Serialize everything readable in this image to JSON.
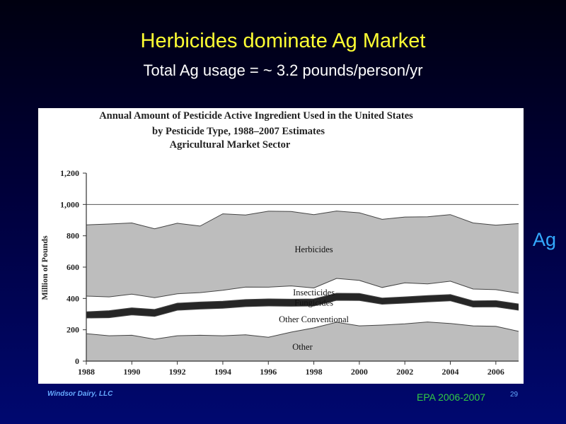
{
  "slide": {
    "title": "Herbicides dominate Ag Market",
    "subtitle": "Total Ag usage = ~ 3.2 pounds/person/yr",
    "side_label": "Ag",
    "footer_left": "Windsor Dairy, LLC",
    "footer_source": "EPA 2006-2007",
    "page_number": "29"
  },
  "chart_data": {
    "type": "area",
    "stacked": true,
    "title_lines": [
      "Annual Amount of  Pesticide Active Ingredient Used in the United States",
      "by Pesticide Type, 1988–2007 Estimates",
      "Agricultural Market Sector"
    ],
    "xlabel": "",
    "ylabel": "Million of Pounds",
    "ylim": [
      0,
      1200
    ],
    "yticks": [
      0,
      200,
      400,
      600,
      800,
      1000,
      1200
    ],
    "ytick_labels": [
      "0",
      "200",
      "400",
      "600",
      "800",
      "1,000",
      "1,200"
    ],
    "xlim": [
      1988,
      2007
    ],
    "xticks": [
      1988,
      1990,
      1992,
      1994,
      1996,
      1998,
      2000,
      2002,
      2004,
      2006
    ],
    "xtick_labels": [
      "1988",
      "1990",
      "1992",
      "1994",
      "1996",
      "1998",
      "2000",
      "2002",
      "2004",
      "2006"
    ],
    "grid": {
      "horizontal_lines_at": [
        1000
      ]
    },
    "x": [
      1988,
      1989,
      1990,
      1991,
      1992,
      1993,
      1994,
      1995,
      1996,
      1997,
      1998,
      1999,
      2000,
      2001,
      2002,
      2003,
      2004,
      2005,
      2006,
      2007
    ],
    "series": [
      {
        "name": "Other",
        "color": "#bdbdbd",
        "values": [
          175,
          162,
          165,
          140,
          162,
          165,
          162,
          168,
          152,
          185,
          212,
          248,
          225,
          230,
          238,
          250,
          240,
          225,
          222,
          190
        ]
      },
      {
        "name": "Other Conventional",
        "color": "#ffffff",
        "values": [
          100,
          115,
          130,
          145,
          163,
          167,
          175,
          180,
          200,
          165,
          140,
          140,
          162,
          133,
          132,
          128,
          145,
          120,
          124,
          135
        ]
      },
      {
        "name": "Fungicides",
        "color": "#262626",
        "values": [
          40,
          45,
          45,
          45,
          45,
          45,
          45,
          45,
          45,
          45,
          45,
          45,
          45,
          40,
          40,
          40,
          40,
          40,
          40,
          40
        ]
      },
      {
        "name": "Insecticides",
        "color": "#ffffff",
        "values": [
          100,
          88,
          87,
          75,
          60,
          60,
          70,
          80,
          75,
          85,
          70,
          95,
          83,
          67,
          90,
          75,
          85,
          75,
          70,
          68
        ]
      },
      {
        "name": "Herbicides",
        "color": "#bdbdbd",
        "values": [
          455,
          465,
          455,
          440,
          450,
          425,
          488,
          460,
          485,
          475,
          468,
          430,
          432,
          435,
          420,
          428,
          425,
          422,
          412,
          445
        ]
      }
    ],
    "series_labels": [
      {
        "series": "Herbicides",
        "text": "Herbicides",
        "at": [
          1998,
          712
        ]
      },
      {
        "series": "Insecticides",
        "text": "Insecticides",
        "at": [
          1998,
          437
        ]
      },
      {
        "series": "Fungicides",
        "text": "Fungicides",
        "at": [
          1998,
          373
        ]
      },
      {
        "series": "Other Conventional",
        "text": "Other Conventional",
        "at": [
          1998,
          266
        ]
      },
      {
        "series": "Other",
        "text": "Other",
        "at": [
          1997.5,
          90
        ]
      }
    ]
  }
}
